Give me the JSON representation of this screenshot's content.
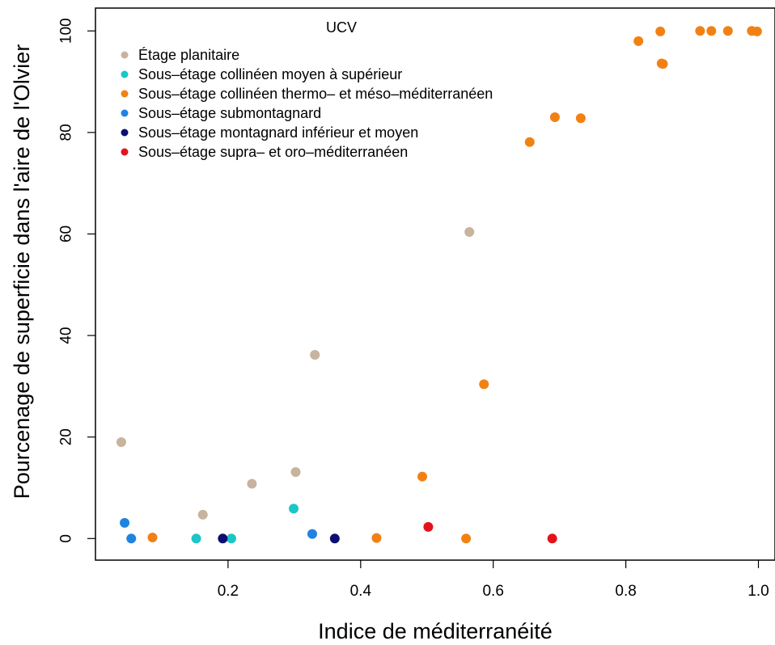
{
  "chart_data": {
    "type": "scatter",
    "title": "",
    "xlabel": "Indice de méditerranéité",
    "ylabel": "Pourcenage de superficie dans l'aire de l'Olvier",
    "xlim": [
      0.0,
      1.025
    ],
    "ylim": [
      -4.25,
      104.5
    ],
    "xticks": [
      {
        "value": 0.2,
        "label": "0.2"
      },
      {
        "value": 0.4,
        "label": "0.4"
      },
      {
        "value": 0.6,
        "label": "0.6"
      },
      {
        "value": 0.8,
        "label": "0.8"
      },
      {
        "value": 1.0,
        "label": "1.0"
      }
    ],
    "yticks": [
      {
        "value": 0,
        "label": "0"
      },
      {
        "value": 20,
        "label": "20"
      },
      {
        "value": 40,
        "label": "40"
      },
      {
        "value": 60,
        "label": "60"
      },
      {
        "value": 80,
        "label": "80"
      },
      {
        "value": 100,
        "label": "100"
      }
    ],
    "grid": false,
    "legend": {
      "title": "UCV",
      "placement": "top-left"
    },
    "series": [
      {
        "name": "Étage planitaire",
        "color": "#c8b39e",
        "points": [
          {
            "x": 0.039,
            "y": 19.0
          },
          {
            "x": 0.162,
            "y": 4.7
          },
          {
            "x": 0.236,
            "y": 10.8
          },
          {
            "x": 0.302,
            "y": 13.1
          },
          {
            "x": 0.331,
            "y": 36.2
          },
          {
            "x": 0.564,
            "y": 60.4
          }
        ]
      },
      {
        "name": "Sous–étage collinéen moyen à supérieur",
        "color": "#1cc6c6",
        "points": [
          {
            "x": 0.152,
            "y": 0.0
          },
          {
            "x": 0.205,
            "y": 0.0
          },
          {
            "x": 0.299,
            "y": 5.9
          }
        ]
      },
      {
        "name": "Sous–étage collinéen thermo– et méso–méditerranéen",
        "color": "#f28114",
        "points": [
          {
            "x": 0.086,
            "y": 0.2
          },
          {
            "x": 0.424,
            "y": 0.1
          },
          {
            "x": 0.493,
            "y": 12.2
          },
          {
            "x": 0.559,
            "y": 0.0
          },
          {
            "x": 0.586,
            "y": 30.4
          },
          {
            "x": 0.655,
            "y": 78.1
          },
          {
            "x": 0.693,
            "y": 83.0
          },
          {
            "x": 0.732,
            "y": 82.8
          },
          {
            "x": 0.819,
            "y": 98.0
          },
          {
            "x": 0.852,
            "y": 99.9
          },
          {
            "x": 0.854,
            "y": 93.6
          },
          {
            "x": 0.856,
            "y": 93.5
          },
          {
            "x": 0.912,
            "y": 100.0
          },
          {
            "x": 0.929,
            "y": 100.0
          },
          {
            "x": 0.954,
            "y": 100.0
          },
          {
            "x": 0.99,
            "y": 100.0
          },
          {
            "x": 0.998,
            "y": 99.9
          }
        ]
      },
      {
        "name": "Sous–étage submontagnard",
        "color": "#1f83e0",
        "points": [
          {
            "x": 0.044,
            "y": 3.1
          },
          {
            "x": 0.054,
            "y": 0.0
          },
          {
            "x": 0.327,
            "y": 0.9
          }
        ]
      },
      {
        "name": "Sous–étage montagnard inférieur et moyen",
        "color": "#0b0e72",
        "points": [
          {
            "x": 0.192,
            "y": 0.0
          },
          {
            "x": 0.361,
            "y": 0.0
          }
        ]
      },
      {
        "name": "Sous–étage supra– et oro–méditerranéen",
        "color": "#e3121b",
        "points": [
          {
            "x": 0.502,
            "y": 2.3
          },
          {
            "x": 0.689,
            "y": 0.0
          }
        ]
      }
    ]
  }
}
